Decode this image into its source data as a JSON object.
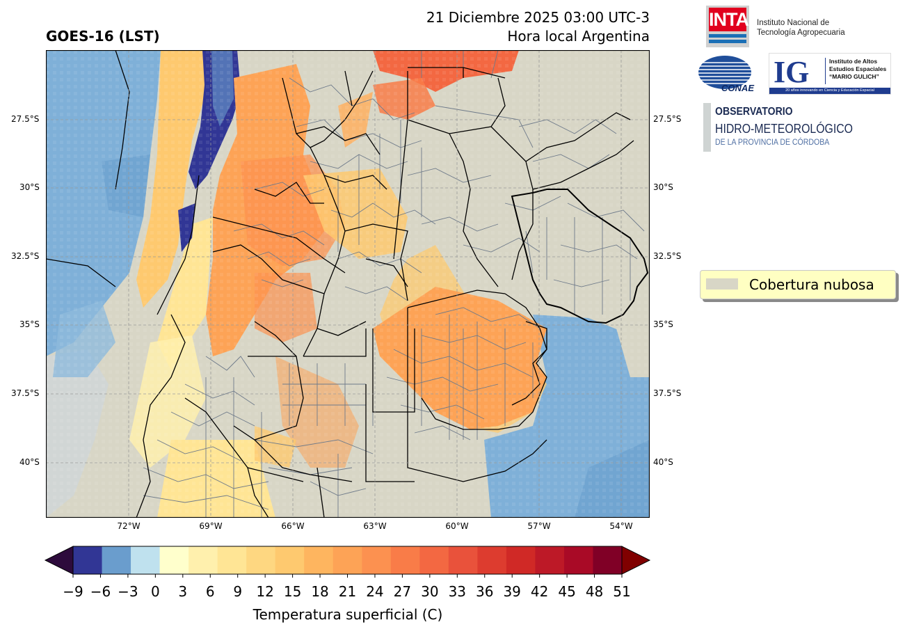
{
  "title": {
    "left": "GOES-16 (LST)",
    "right_line1": "21 Diciembre 2025 03:00 UTC-3",
    "right_line2": "Hora local Argentina"
  },
  "map": {
    "lat_labels": [
      "27.5°S",
      "30°S",
      "32.5°S",
      "35°S",
      "37.5°S",
      "40°S"
    ],
    "lon_labels": [
      "72°W",
      "69°W",
      "66°W",
      "63°W",
      "60°W",
      "57°W",
      "54°W"
    ],
    "colors": {
      "cloud": "#d8d6c6",
      "ocean_cold": "#7fb0d8",
      "border": "#000000",
      "department_lines": "#6e7a8a",
      "gridline": "#9a9a9a"
    }
  },
  "legend": {
    "label": "Cobertura nubosa",
    "swatch_color": "#d8d6c6",
    "background": "#ffffc2"
  },
  "colorbar": {
    "label": "Temperatura superficial (C)",
    "ticks": [
      "−9",
      "−6",
      "−3",
      "0",
      "3",
      "6",
      "9",
      "12",
      "15",
      "18",
      "21",
      "24",
      "27",
      "30",
      "33",
      "36",
      "39",
      "42",
      "45",
      "48",
      "51"
    ],
    "under_color": "#2d0b3c",
    "over_color": "#800000",
    "colors": [
      "#313695",
      "#6a9dcd",
      "#bfe1ee",
      "#ffffcc",
      "#fff0ad",
      "#ffe595",
      "#fed781",
      "#fec96f",
      "#feb55f",
      "#fda356",
      "#fc9150",
      "#f97c48",
      "#f36842",
      "#e9523b",
      "#dd3c2f",
      "#d02926",
      "#bd1927",
      "#a90a26",
      "#800026"
    ]
  },
  "logos": {
    "inta": {
      "mark": "INTA",
      "text_line1": "Instituto Nacional de",
      "text_line2": "Tecnología Agropecuaria"
    },
    "conae": {
      "mark": "CONAE"
    },
    "ig": {
      "mark": "IG",
      "line1": "Instituto de Altos",
      "line2": "Estudios Espaciales",
      "line3": "“MARIO GULICH”",
      "tagline": "20 años innovando en Ciencia y Educación Espacial"
    },
    "observatorio": {
      "line1": "OBSERVATORIO",
      "line2": "HIDRO-METEOROLÓGICO",
      "line3": "DE LA PROVINCIA DE CÓRDOBA"
    }
  }
}
